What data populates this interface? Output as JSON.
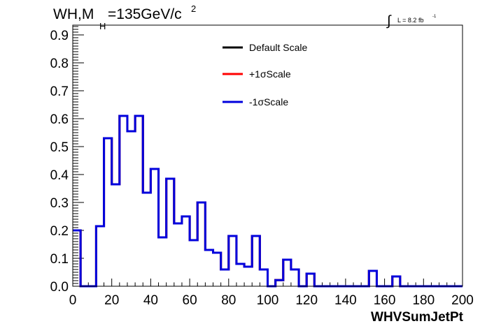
{
  "chart_data": {
    "type": "line",
    "title": {
      "main": "WH,M",
      "sub": "H",
      "rest": "=135GeV/c",
      "sup": "2"
    },
    "luminosity": {
      "integral_symbol": "∫",
      "text": "L = 8.2 fb",
      "sup": "-1"
    },
    "xlabel": "WHVSumJetPt",
    "ylabel": "",
    "xlim": [
      0,
      200
    ],
    "ylim": [
      0,
      0.935
    ],
    "x_ticks": [
      "0",
      "20",
      "40",
      "60",
      "80",
      "100",
      "120",
      "140",
      "160",
      "180",
      "200"
    ],
    "y_ticks": [
      "0.0",
      "0.1",
      "0.2",
      "0.3",
      "0.4",
      "0.5",
      "0.6",
      "0.7",
      "0.8",
      "0.9"
    ],
    "bin_width": 4,
    "grid": false,
    "legend_position": "top-center",
    "series": [
      {
        "name": "Default Scale",
        "color": "#000000",
        "values": [
          0.2,
          0.0,
          0.0,
          0.215,
          0.53,
          0.365,
          0.61,
          0.555,
          0.61,
          0.335,
          0.42,
          0.175,
          0.385,
          0.225,
          0.25,
          0.165,
          0.3,
          0.13,
          0.12,
          0.06,
          0.18,
          0.08,
          0.07,
          0.18,
          0.06,
          0.0,
          0.022,
          0.095,
          0.06,
          0.0,
          0.045,
          0.0,
          0.0,
          0.0,
          0.0,
          0.0,
          0.0,
          0.0,
          0.055,
          0.0,
          0.0,
          0.035,
          0.0,
          0.0,
          0.0,
          0.0,
          0.0,
          0.0,
          0.0,
          0.0
        ]
      },
      {
        "name": "+1σScale",
        "color": "#ff0000",
        "values": [
          0.2,
          0.0,
          0.0,
          0.215,
          0.53,
          0.365,
          0.61,
          0.555,
          0.61,
          0.335,
          0.42,
          0.175,
          0.385,
          0.225,
          0.25,
          0.165,
          0.3,
          0.13,
          0.12,
          0.06,
          0.18,
          0.08,
          0.07,
          0.18,
          0.06,
          0.0,
          0.022,
          0.095,
          0.06,
          0.0,
          0.045,
          0.0,
          0.0,
          0.0,
          0.0,
          0.0,
          0.0,
          0.0,
          0.055,
          0.0,
          0.0,
          0.035,
          0.0,
          0.0,
          0.0,
          0.0,
          0.0,
          0.0,
          0.0,
          0.0
        ]
      },
      {
        "name": "-1σScale",
        "color": "#0000dd",
        "values": [
          0.2,
          0.0,
          0.0,
          0.215,
          0.53,
          0.365,
          0.61,
          0.555,
          0.61,
          0.335,
          0.42,
          0.175,
          0.385,
          0.225,
          0.25,
          0.165,
          0.3,
          0.13,
          0.12,
          0.06,
          0.18,
          0.08,
          0.07,
          0.18,
          0.06,
          0.0,
          0.022,
          0.095,
          0.06,
          0.0,
          0.045,
          0.0,
          0.0,
          0.0,
          0.0,
          0.0,
          0.0,
          0.0,
          0.055,
          0.0,
          0.0,
          0.035,
          0.0,
          0.0,
          0.0,
          0.0,
          0.0,
          0.0,
          0.0,
          0.0
        ]
      }
    ]
  }
}
